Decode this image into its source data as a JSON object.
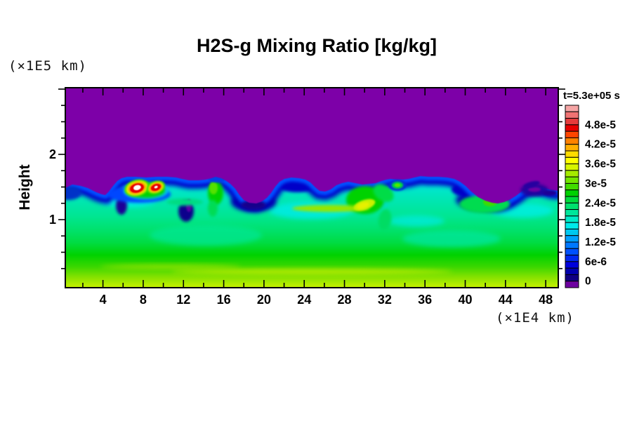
{
  "title": "H2S-g Mixing Ratio [kg/kg]",
  "time_label": "t=5.3e+05 s",
  "axes": {
    "y_unit_label": "(×1E5 km)",
    "y_axis_label": "Height",
    "y_tick_labels": [
      "1",
      "2"
    ],
    "x_unit_label": "(×1E4 km)",
    "x_tick_labels": [
      "4",
      "8",
      "12",
      "16",
      "20",
      "24",
      "28",
      "32",
      "36",
      "40",
      "44",
      "48"
    ]
  },
  "colorbar": {
    "segments_top_to_bottom": [
      "#F5A5A5",
      "#F07373",
      "#E63C3C",
      "#E60000",
      "#FF4600",
      "#FF8200",
      "#FFAF00",
      "#FFDC00",
      "#FFFF00",
      "#D7F500",
      "#A5EB00",
      "#73E600",
      "#41DC00",
      "#00D200",
      "#00DC3C",
      "#00E16E",
      "#00E69B",
      "#00EBC8",
      "#00EBEB",
      "#00C8F0",
      "#00A0FF",
      "#0078FF",
      "#0050FF",
      "#0028F0",
      "#0000DC",
      "#0000AF",
      "#0F0082",
      "#6E00A0"
    ],
    "tick_labels_top_to_bottom": [
      "4.8e-5",
      "4.2e-5",
      "3.6e-5",
      "3e-5",
      "2.4e-5",
      "1.8e-5",
      "1.2e-5",
      "6e-6",
      "0"
    ]
  },
  "colors": {
    "background": "#FFFFFF",
    "axis": "#000000",
    "field_zero_purple": "#7D00A8",
    "interface_navy": "#0000C8",
    "interface_blue": "#0050FF",
    "mixed_layer_cyan": "#00E6C3",
    "plume_green": "#00D200",
    "plume_core_red": "#E60000",
    "plume_core_white": "#FFFFFF",
    "bottom_yellow_green": "#C8F000"
  },
  "chart_data": {
    "type": "heatmap",
    "title": "H2S-g Mixing Ratio [kg/kg]",
    "time": "t=5.3e+05 s",
    "xlabel": "(×1E4 km)",
    "ylabel": "Height (×1E5 km)",
    "xlim": [
      0.3,
      49.5
    ],
    "ylim": [
      0,
      3.05
    ],
    "x_ticks": [
      4,
      8,
      12,
      16,
      20,
      24,
      28,
      32,
      36,
      40,
      44,
      48
    ],
    "x_minor_tick_step": 2,
    "y_ticks": [
      1,
      2
    ],
    "y_minor_tick_step": 0.25,
    "value_unit": "kg/kg",
    "value_levels": {
      "min": 0,
      "max": 5.4e-05,
      "step": 2e-06
    },
    "legend_position": "right-colorbar",
    "grid": false,
    "field_summary": [
      {
        "region": "upper atmosphere (uniform)",
        "height_range": [
          1.55,
          3.05
        ],
        "mixing_ratio": 0
      },
      {
        "region": "entrainment interface with billows",
        "height_range": [
          1.2,
          1.55
        ],
        "mixing_ratio": "0 to 1.2e-5"
      },
      {
        "region": "well-mixed turbulent layer",
        "height_range": [
          0.45,
          1.2
        ],
        "mixing_ratio": "1.8e-5 to 2.6e-5"
      },
      {
        "region": "lower gradient layer",
        "height_range": [
          0,
          0.45
        ],
        "mixing_ratio": "2.6e-5 to 4.2e-5 increasing downward"
      }
    ],
    "features": [
      {
        "name": "strong plume core (white/red)",
        "x": 7.4,
        "height": 1.48,
        "peak_mixing_ratio": "5.4e-5"
      },
      {
        "name": "second plume core (red)",
        "x": 9.3,
        "height": 1.48,
        "peak_mixing_ratio": "5.0e-5"
      },
      {
        "name": "green updraft curl",
        "x": 15.3,
        "height": 1.4,
        "mixing_ratio": "3e-5"
      },
      {
        "name": "plume with yellow core",
        "x": 29.7,
        "height": 1.23,
        "mixing_ratio": "4e-5"
      },
      {
        "name": "detached green blob in purple layer",
        "x": 33.3,
        "height": 1.52,
        "mixing_ratio": "3e-5"
      },
      {
        "name": "green mound",
        "x": 41.9,
        "height": 1.28,
        "mixing_ratio": "3e-5"
      },
      {
        "name": "dark navy billow swirl",
        "x": 46.9,
        "height": 1.46,
        "mixing_ratio": "4e-6"
      }
    ]
  }
}
